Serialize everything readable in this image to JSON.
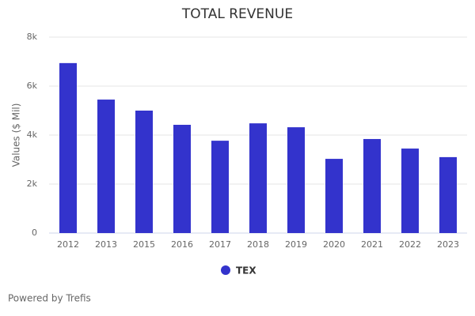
{
  "chart_data": {
    "type": "bar",
    "title": "TOTAL REVENUE",
    "y_label": "Values ($ Mil)",
    "categories": [
      "2012",
      "2013",
      "2015",
      "2016",
      "2017",
      "2018",
      "2019",
      "2020",
      "2021",
      "2022",
      "2023"
    ],
    "series": [
      {
        "name": "TEX",
        "color": "#3333cc",
        "values": [
          6940,
          5450,
          5000,
          4420,
          3770,
          4480,
          4320,
          3030,
          3840,
          3450,
          3100
        ]
      }
    ],
    "ylim": [
      0,
      8000
    ],
    "yticks": [
      0,
      {
        "value": 2000,
        "label": "2k"
      },
      {
        "value": 4000,
        "label": "4k"
      },
      {
        "value": 6000,
        "label": "6k"
      },
      {
        "value": 8000,
        "label": "8k"
      }
    ],
    "grid": true,
    "credits": "Powered by Trefis"
  }
}
